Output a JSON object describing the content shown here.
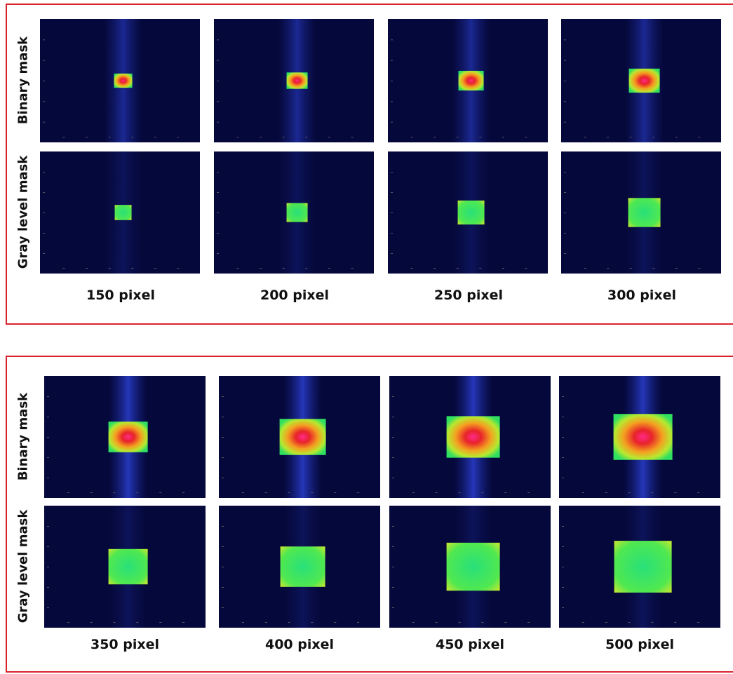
{
  "panels": [
    {
      "row_labels": [
        "Binary mask",
        "Gray level mask"
      ],
      "columns": [
        "150 pixel",
        "200 pixel",
        "250 pixel",
        "300 pixel"
      ]
    },
    {
      "row_labels": [
        "Binary mask",
        "Gray level mask"
      ],
      "columns": [
        "350 pixel",
        "400 pixel",
        "450 pixel",
        "500 pixel"
      ]
    }
  ]
}
